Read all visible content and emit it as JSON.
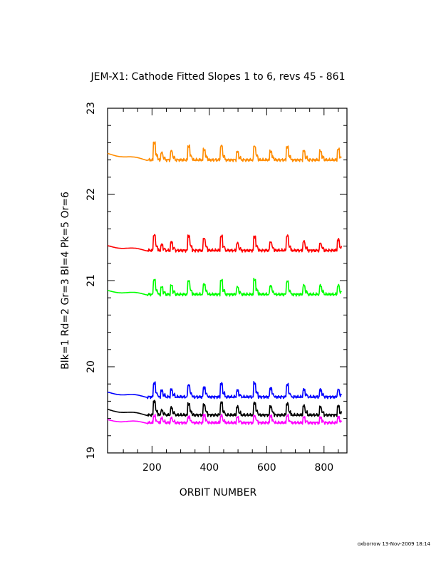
{
  "chart_data": {
    "type": "line",
    "title": "JEM-X1: Cathode Fitted Slopes 1 to 6, revs 45 - 861",
    "xlabel": "ORBIT NUMBER",
    "ylabel": "Blk=1  Rd=2  Gr=3  Bl=4  Pk=5  Or=6",
    "xlim": [
      45,
      880
    ],
    "ylim": [
      19,
      23
    ],
    "x_ticks": [
      200,
      400,
      600,
      800
    ],
    "y_ticks": [
      19,
      20,
      21,
      22,
      23
    ],
    "grid": false,
    "x_start": 45,
    "x_end": 861,
    "spike_orbits": [
      205,
      232,
      265,
      325,
      380,
      440,
      495,
      555,
      612,
      670,
      728,
      785,
      848
    ],
    "series": [
      {
        "name": "Blk=1",
        "color": "#000000",
        "start": 19.5,
        "base": 19.44,
        "spike": [
          0.16,
          0.05,
          0.08,
          0.13,
          0.12,
          0.14,
          0.09,
          0.14,
          0.1,
          0.13,
          0.1,
          0.09,
          0.1
        ]
      },
      {
        "name": "Rd=2",
        "color": "#ff0000",
        "start": 21.4,
        "base": 21.35,
        "spike": [
          0.18,
          0.06,
          0.09,
          0.17,
          0.14,
          0.16,
          0.08,
          0.16,
          0.1,
          0.17,
          0.1,
          0.08,
          0.12
        ]
      },
      {
        "name": "Gr=3",
        "color": "#00ff00",
        "start": 20.88,
        "base": 20.84,
        "spike": [
          0.17,
          0.08,
          0.1,
          0.16,
          0.12,
          0.16,
          0.08,
          0.17,
          0.1,
          0.15,
          0.1,
          0.1,
          0.1
        ]
      },
      {
        "name": "Bl=4",
        "color": "#0000ff",
        "start": 19.7,
        "base": 19.65,
        "spike": [
          0.16,
          0.07,
          0.08,
          0.14,
          0.11,
          0.15,
          0.07,
          0.16,
          0.1,
          0.14,
          0.08,
          0.08,
          0.08
        ]
      },
      {
        "name": "Pk=5",
        "color": "#ff00ff",
        "start": 19.38,
        "base": 19.35,
        "spike": [
          0.08,
          0.05,
          0.05,
          0.07,
          0.09,
          0.08,
          0.06,
          0.08,
          0.08,
          0.08,
          0.06,
          0.06,
          0.06
        ]
      },
      {
        "name": "Or=6",
        "color": "#ff8c00",
        "start": 22.47,
        "base": 22.4,
        "spike": [
          0.2,
          0.08,
          0.1,
          0.16,
          0.12,
          0.16,
          0.09,
          0.16,
          0.1,
          0.15,
          0.1,
          0.1,
          0.12
        ]
      }
    ]
  },
  "footer": "oxborrow 13-Nov-2009 18:14"
}
